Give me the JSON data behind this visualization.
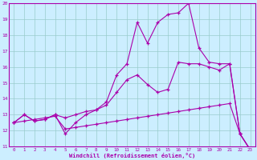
{
  "bg_color": "#cceeff",
  "line_color": "#aa00aa",
  "grid_color": "#99cccc",
  "xlim_min": -0.5,
  "xlim_max": 23.5,
  "ylim_min": 11,
  "ylim_max": 20,
  "xlabel": "Windchill (Refroidissement éolien,°C)",
  "xtick_labels": [
    "0",
    "1",
    "2",
    "3",
    "4",
    "5",
    "6",
    "7",
    "8",
    "9",
    "10",
    "11",
    "12",
    "13",
    "14",
    "15",
    "16",
    "17",
    "18",
    "19",
    "20",
    "21",
    "22",
    "23"
  ],
  "ytick_labels": [
    "11",
    "12",
    "13",
    "14",
    "15",
    "16",
    "17",
    "18",
    "19",
    "20"
  ],
  "line_spike_x": [
    0,
    1,
    2,
    3,
    4,
    5,
    6,
    7,
    8,
    9,
    10,
    11,
    12,
    13,
    14,
    15,
    16,
    17,
    18,
    19,
    20,
    21,
    22,
    23
  ],
  "line_spike_y": [
    12.5,
    13.0,
    12.6,
    12.7,
    13.0,
    11.8,
    12.5,
    13.0,
    13.3,
    13.8,
    15.5,
    16.2,
    18.8,
    17.5,
    18.8,
    19.3,
    19.4,
    20.0,
    17.2,
    16.3,
    16.2,
    16.2,
    11.8,
    10.8
  ],
  "line_mid_x": [
    0,
    1,
    2,
    3,
    4,
    5,
    6,
    7,
    8,
    9,
    10,
    11,
    12,
    13,
    14,
    15,
    16,
    17,
    18,
    19,
    20,
    21,
    22,
    23
  ],
  "line_mid_y": [
    12.5,
    13.0,
    12.6,
    12.7,
    13.0,
    12.8,
    13.0,
    13.2,
    13.3,
    13.6,
    14.4,
    15.2,
    15.5,
    14.9,
    14.4,
    14.6,
    16.3,
    16.2,
    16.2,
    16.0,
    15.8,
    16.2,
    11.8,
    10.8
  ],
  "line_diag_x": [
    0,
    1,
    2,
    3,
    4,
    5,
    6,
    7,
    8,
    9,
    10,
    11,
    12,
    13,
    14,
    15,
    16,
    17,
    18,
    19,
    20,
    21,
    22,
    23
  ],
  "line_diag_y": [
    12.5,
    12.6,
    12.7,
    12.8,
    12.9,
    12.1,
    12.2,
    12.3,
    12.4,
    12.5,
    12.6,
    12.7,
    12.8,
    12.9,
    13.0,
    13.1,
    13.2,
    13.3,
    13.4,
    13.5,
    13.6,
    13.7,
    11.8,
    10.8
  ]
}
